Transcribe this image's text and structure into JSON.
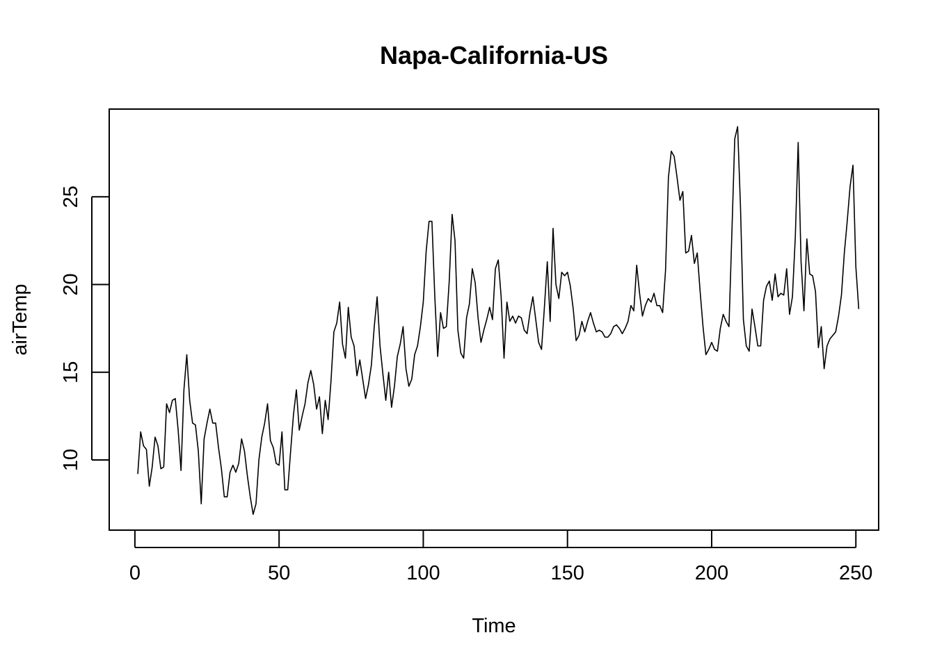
{
  "chart_data": {
    "type": "line",
    "title": "Napa-California-US",
    "xlabel": "Time",
    "ylabel": "airTemp",
    "xlim": [
      -8.9,
      257.9
    ],
    "ylim": [
      6.0,
      30.0
    ],
    "xticks": [
      0,
      50,
      100,
      150,
      200,
      250
    ],
    "yticks": [
      10,
      15,
      20,
      25
    ],
    "grid": false,
    "legend": "none",
    "line_color": "#000000",
    "series": [
      {
        "values": [
          9.2,
          11.6,
          10.8,
          10.6,
          8.5,
          9.6,
          11.3,
          10.8,
          9.5,
          9.6,
          13.2,
          12.7,
          13.4,
          13.5,
          11.7,
          9.4,
          14.0,
          16.0,
          13.4,
          12.1,
          12.0,
          10.5,
          7.5,
          11.2,
          12.1,
          12.9,
          12.1,
          12.1,
          10.7,
          9.5,
          7.9,
          7.9,
          9.3,
          9.7,
          9.3,
          9.8,
          11.2,
          10.5,
          9.1,
          7.9,
          6.9,
          7.5,
          10.0,
          11.3,
          12.1,
          13.2,
          11.1,
          10.7,
          9.8,
          9.7,
          11.6,
          8.3,
          8.3,
          10.5,
          12.6,
          14.0,
          11.7,
          12.5,
          13.2,
          14.4,
          15.1,
          14.3,
          12.9,
          13.6,
          11.5,
          13.4,
          12.3,
          14.5,
          17.3,
          17.8,
          19.0,
          16.6,
          15.8,
          18.7,
          17.0,
          16.5,
          14.8,
          15.7,
          14.6,
          13.5,
          14.3,
          15.4,
          17.6,
          19.3,
          16.5,
          14.9,
          13.4,
          15.0,
          13.0,
          14.2,
          15.9,
          16.6,
          17.6,
          15.2,
          14.2,
          14.6,
          16.0,
          16.5,
          17.6,
          19.0,
          21.9,
          23.6,
          23.6,
          19.3,
          15.9,
          18.4,
          17.5,
          17.6,
          20.2,
          24.0,
          22.5,
          17.4,
          16.1,
          15.8,
          18.1,
          18.9,
          20.9,
          20.1,
          18.1,
          16.7,
          17.4,
          18.0,
          18.7,
          18.0,
          20.9,
          21.4,
          19.3,
          15.8,
          19.0,
          17.9,
          18.2,
          17.8,
          18.2,
          18.1,
          17.4,
          17.2,
          18.4,
          19.3,
          18.0,
          16.7,
          16.3,
          18.7,
          21.3,
          17.9,
          23.2,
          20.0,
          19.2,
          20.7,
          20.5,
          20.7,
          19.9,
          18.6,
          16.8,
          17.1,
          17.9,
          17.3,
          17.9,
          18.4,
          17.8,
          17.3,
          17.4,
          17.3,
          17.0,
          17.0,
          17.2,
          17.6,
          17.7,
          17.5,
          17.2,
          17.5,
          17.9,
          18.8,
          18.5,
          21.1,
          19.5,
          18.2,
          18.8,
          19.2,
          19.0,
          19.5,
          18.8,
          18.8,
          18.4,
          20.8,
          26.1,
          27.6,
          27.3,
          26.1,
          24.8,
          25.3,
          21.8,
          21.9,
          22.8,
          21.2,
          21.8,
          19.6,
          17.6,
          16.0,
          16.3,
          16.7,
          16.3,
          16.2,
          17.5,
          18.3,
          17.9,
          17.6,
          22.9,
          28.3,
          29.0,
          24.4,
          18.0,
          16.5,
          16.2,
          18.6,
          17.6,
          16.5,
          16.5,
          19.1,
          19.9,
          20.2,
          19.1,
          20.6,
          19.3,
          19.5,
          19.4,
          20.9,
          18.3,
          19.3,
          22.7,
          28.1,
          21.3,
          18.5,
          22.6,
          20.6,
          20.5,
          19.6,
          16.4,
          17.6,
          15.2,
          16.5,
          16.9,
          17.1,
          17.3,
          18.2,
          19.4,
          21.8,
          23.6,
          25.6,
          26.8,
          21.0,
          18.6
        ]
      }
    ]
  }
}
